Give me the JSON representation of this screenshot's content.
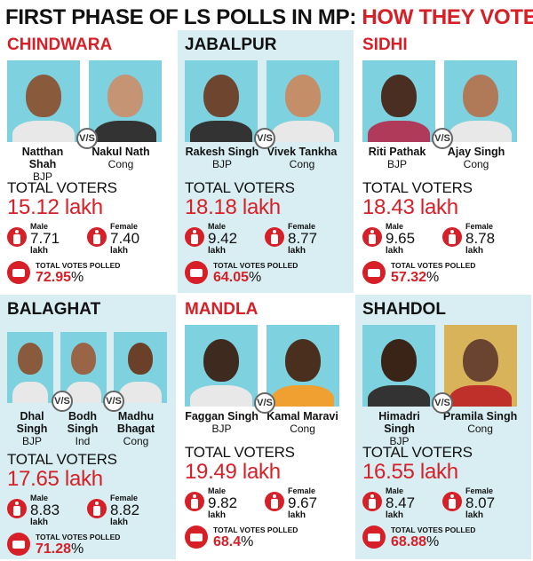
{
  "header": {
    "title_part1": "FIRST PHASE OF LS POLLS IN MP: ",
    "title_part2": "HOW THEY VOTED"
  },
  "labels": {
    "vs": "V/S",
    "total_voters": "TOTAL VOTERS",
    "male": "Male",
    "female": "Female",
    "unit": "lakh",
    "total_votes_polled": "TOTAL VOTES POLLED",
    "percent": "%"
  },
  "colors": {
    "accent": "#d61f26",
    "photo_bg": "#7ed1de",
    "panel_alt": "#d9eef2"
  },
  "constituencies": [
    {
      "name": "CHINDWARA",
      "candidates": [
        {
          "name": "Natthan Shah",
          "party": "BJP"
        },
        {
          "name": "Nakul Nath",
          "party": "Cong"
        }
      ],
      "total_voters": "15.12 lakh",
      "male": "7.71",
      "female": "7.40",
      "polled": "72.95"
    },
    {
      "name": "JABALPUR",
      "candidates": [
        {
          "name": "Rakesh Singh",
          "party": "BJP"
        },
        {
          "name": "Vivek Tankha",
          "party": "Cong"
        }
      ],
      "total_voters": "18.18 lakh",
      "male": "9.42",
      "female": "8.77",
      "polled": "64.05"
    },
    {
      "name": "SIDHI",
      "candidates": [
        {
          "name": "Riti Pathak",
          "party": "BJP"
        },
        {
          "name": "Ajay Singh",
          "party": "Cong"
        }
      ],
      "total_voters": "18.43 lakh",
      "male": "9.65",
      "female": "8.78",
      "polled": "57.32"
    },
    {
      "name": "BALAGHAT",
      "candidates": [
        {
          "name": "Dhal Singh",
          "party": "BJP"
        },
        {
          "name": "Bodh Singh",
          "party": "Ind"
        },
        {
          "name": "Madhu Bhagat",
          "party": "Cong"
        }
      ],
      "total_voters": "17.65 lakh",
      "male": "8.83",
      "female": "8.82",
      "polled": "71.28"
    },
    {
      "name": "MANDLA",
      "candidates": [
        {
          "name": "Faggan Singh",
          "party": "BJP"
        },
        {
          "name": "Kamal Maravi",
          "party": "Cong"
        }
      ],
      "total_voters": "19.49 lakh",
      "male": "9.82",
      "female": "9.67",
      "polled": "68.4"
    },
    {
      "name": "SHAHDOL",
      "candidates": [
        {
          "name": "Himadri Singh",
          "party": "BJP"
        },
        {
          "name": "Pramila Singh",
          "party": "Cong"
        }
      ],
      "total_voters": "16.55 lakh",
      "male": "8.47",
      "female": "8.07",
      "polled": "68.88"
    }
  ]
}
